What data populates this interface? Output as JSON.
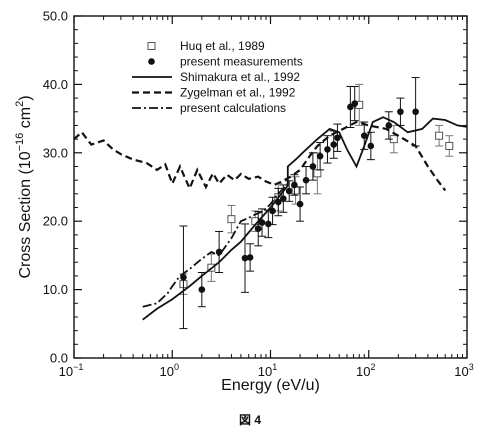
{
  "chart_data": {
    "type": "scatter",
    "xlabel": "Energy (eV/u)",
    "ylabel": "Cross Section (10^-16 cm^2)",
    "ylabel_parts": [
      "Cross Section (10",
      "−16",
      " cm",
      "2",
      ")"
    ],
    "xscale": "log",
    "xlim": [
      0.1,
      1000
    ],
    "ylim": [
      0,
      50
    ],
    "x_ticks": [
      {
        "v": 0.1,
        "base": "10",
        "exp": "−1"
      },
      {
        "v": 1,
        "base": "10",
        "exp": "0"
      },
      {
        "v": 10,
        "base": "10",
        "exp": "1"
      },
      {
        "v": 100,
        "base": "10",
        "exp": "2"
      },
      {
        "v": 1000,
        "base": "10",
        "exp": "3"
      }
    ],
    "y_ticks": [
      "0.0",
      "10.0",
      "20.0",
      "30.0",
      "40.0",
      "50.0"
    ],
    "y_tick_values": [
      0,
      10,
      20,
      30,
      40,
      50
    ],
    "grid": false,
    "legend_position": "top-center",
    "figure_caption": "図 4",
    "series": [
      {
        "name": "Huq et al., 1989",
        "kind": "scatter",
        "marker": "open-square",
        "points": [
          {
            "x": 1.3,
            "y": 10.8,
            "err": 1.5
          },
          {
            "x": 2.5,
            "y": 13.2,
            "err": 2.0
          },
          {
            "x": 4.0,
            "y": 20.3,
            "err": 2.0
          },
          {
            "x": 7.0,
            "y": 20.0,
            "err": 1.5
          },
          {
            "x": 12.0,
            "y": 23.5,
            "err": 2.0
          },
          {
            "x": 18.0,
            "y": 24.5,
            "err": 2.0
          },
          {
            "x": 30.0,
            "y": 27.0,
            "err": 3.0
          },
          {
            "x": 80.0,
            "y": 37.0,
            "err": 3.0
          },
          {
            "x": 180.0,
            "y": 32.0,
            "err": 2.0
          },
          {
            "x": 520.0,
            "y": 32.5,
            "err": 1.5
          },
          {
            "x": 660.0,
            "y": 31.0,
            "err": 1.5
          }
        ]
      },
      {
        "name": "present measurements",
        "kind": "scatter",
        "marker": "filled-circle",
        "points": [
          {
            "x": 1.3,
            "y": 11.8,
            "err": 7.5
          },
          {
            "x": 2.0,
            "y": 10.0,
            "err": 2.5
          },
          {
            "x": 3.0,
            "y": 15.5,
            "err": 3.0
          },
          {
            "x": 5.5,
            "y": 14.6,
            "err": 5.0
          },
          {
            "x": 6.2,
            "y": 14.7,
            "err": 2.0
          },
          {
            "x": 7.5,
            "y": 18.9,
            "err": 2.5
          },
          {
            "x": 8.2,
            "y": 19.8,
            "err": 2.0
          },
          {
            "x": 9.5,
            "y": 19.6,
            "err": 2.0
          },
          {
            "x": 10.5,
            "y": 21.5,
            "err": 2.0
          },
          {
            "x": 12.0,
            "y": 22.8,
            "err": 2.0
          },
          {
            "x": 13.5,
            "y": 23.3,
            "err": 2.0
          },
          {
            "x": 15.5,
            "y": 24.4,
            "err": 1.5
          },
          {
            "x": 17.5,
            "y": 25.3,
            "err": 1.5
          },
          {
            "x": 20.0,
            "y": 22.5,
            "err": 2.5
          },
          {
            "x": 23.0,
            "y": 26.0,
            "err": 2.0
          },
          {
            "x": 27.0,
            "y": 28.0,
            "err": 2.0
          },
          {
            "x": 32.0,
            "y": 29.5,
            "err": 2.0
          },
          {
            "x": 38.0,
            "y": 30.5,
            "err": 2.0
          },
          {
            "x": 44.0,
            "y": 31.2,
            "err": 2.0
          },
          {
            "x": 48.0,
            "y": 32.2,
            "err": 2.0
          },
          {
            "x": 65.0,
            "y": 36.7,
            "err": 3.0
          },
          {
            "x": 72.0,
            "y": 37.2,
            "err": 2.5
          },
          {
            "x": 90.0,
            "y": 32.5,
            "err": 2.0
          },
          {
            "x": 105.0,
            "y": 31.0,
            "err": 2.0
          },
          {
            "x": 160.0,
            "y": 34.0,
            "err": 2.0
          },
          {
            "x": 210.0,
            "y": 36.0,
            "err": 2.0
          },
          {
            "x": 300.0,
            "y": 36.0,
            "err": 5.0
          }
        ]
      },
      {
        "name": "Shimakura et al., 1992",
        "kind": "line",
        "dash": "solid",
        "points": [
          {
            "x": 0.5,
            "y": 5.6
          },
          {
            "x": 0.7,
            "y": 7.2
          },
          {
            "x": 1.0,
            "y": 8.6
          },
          {
            "x": 1.5,
            "y": 10.5
          },
          {
            "x": 2.0,
            "y": 12.0
          },
          {
            "x": 3.0,
            "y": 14.0
          },
          {
            "x": 4.0,
            "y": 15.8
          },
          {
            "x": 5.0,
            "y": 17.0
          },
          {
            "x": 7.0,
            "y": 19.5
          },
          {
            "x": 10.0,
            "y": 22.0
          },
          {
            "x": 15.0,
            "y": 25.2
          },
          {
            "x": 15.0,
            "y": 28.0
          },
          {
            "x": 18.0,
            "y": 29.0
          },
          {
            "x": 22.0,
            "y": 30.2
          },
          {
            "x": 30.0,
            "y": 32.0
          },
          {
            "x": 40.0,
            "y": 33.5
          },
          {
            "x": 50.0,
            "y": 33.0
          },
          {
            "x": 60.0,
            "y": 30.5
          },
          {
            "x": 75.0,
            "y": 28.0
          },
          {
            "x": 90.0,
            "y": 31.0
          },
          {
            "x": 110.0,
            "y": 34.5
          },
          {
            "x": 140.0,
            "y": 35.2
          },
          {
            "x": 180.0,
            "y": 34.5
          },
          {
            "x": 250.0,
            "y": 33.0
          },
          {
            "x": 350.0,
            "y": 33.5
          },
          {
            "x": 450.0,
            "y": 35.0
          },
          {
            "x": 600.0,
            "y": 34.8
          },
          {
            "x": 800.0,
            "y": 34.0
          },
          {
            "x": 1000.0,
            "y": 33.8
          }
        ]
      },
      {
        "name": "Zygelman et al., 1992",
        "kind": "line",
        "dash": "dashed",
        "points": [
          {
            "x": 0.1,
            "y": 32.0
          },
          {
            "x": 0.12,
            "y": 33.0
          },
          {
            "x": 0.15,
            "y": 31.2
          },
          {
            "x": 0.2,
            "y": 31.8
          },
          {
            "x": 0.25,
            "y": 30.5
          },
          {
            "x": 0.3,
            "y": 29.8
          },
          {
            "x": 0.4,
            "y": 29.0
          },
          {
            "x": 0.55,
            "y": 28.5
          },
          {
            "x": 0.7,
            "y": 27.5
          },
          {
            "x": 0.85,
            "y": 28.3
          },
          {
            "x": 1.0,
            "y": 25.5
          },
          {
            "x": 1.2,
            "y": 28.0
          },
          {
            "x": 1.5,
            "y": 24.8
          },
          {
            "x": 1.8,
            "y": 27.5
          },
          {
            "x": 2.2,
            "y": 25.0
          },
          {
            "x": 2.6,
            "y": 27.0
          },
          {
            "x": 3.0,
            "y": 25.5
          },
          {
            "x": 3.6,
            "y": 26.8
          },
          {
            "x": 4.3,
            "y": 26.0
          },
          {
            "x": 5.0,
            "y": 26.9
          },
          {
            "x": 6.0,
            "y": 26.2
          },
          {
            "x": 7.5,
            "y": 26.5
          },
          {
            "x": 9.0,
            "y": 25.8
          },
          {
            "x": 11.0,
            "y": 25.3
          },
          {
            "x": 13.0,
            "y": 25.8
          },
          {
            "x": 16.0,
            "y": 26.5
          },
          {
            "x": 20.0,
            "y": 27.5
          },
          {
            "x": 25.0,
            "y": 29.5
          },
          {
            "x": 30.0,
            "y": 31.0
          },
          {
            "x": 40.0,
            "y": 32.5
          },
          {
            "x": 55.0,
            "y": 33.5
          },
          {
            "x": 75.0,
            "y": 34.5
          },
          {
            "x": 100.0,
            "y": 34.0
          },
          {
            "x": 150.0,
            "y": 33.5
          },
          {
            "x": 200.0,
            "y": 32.5
          },
          {
            "x": 300.0,
            "y": 31.0
          },
          {
            "x": 400.0,
            "y": 28.0
          },
          {
            "x": 500.0,
            "y": 26.0
          },
          {
            "x": 600.0,
            "y": 24.5
          }
        ]
      },
      {
        "name": "present calculations",
        "kind": "line",
        "dash": "dash-dot",
        "points": [
          {
            "x": 0.5,
            "y": 7.5
          },
          {
            "x": 0.7,
            "y": 8.0
          },
          {
            "x": 0.9,
            "y": 9.5
          },
          {
            "x": 1.0,
            "y": 10.5
          },
          {
            "x": 1.2,
            "y": 12.0
          },
          {
            "x": 1.5,
            "y": 13.0
          },
          {
            "x": 2.0,
            "y": 14.5
          },
          {
            "x": 2.5,
            "y": 15.5
          },
          {
            "x": 3.0,
            "y": 15.0
          },
          {
            "x": 4.0,
            "y": 17.5
          },
          {
            "x": 5.0,
            "y": 20.0
          },
          {
            "x": 6.0,
            "y": 20.5
          },
          {
            "x": 7.0,
            "y": 21.0
          },
          {
            "x": 8.5,
            "y": 21.5
          },
          {
            "x": 10.0,
            "y": 22.5
          },
          {
            "x": 12.0,
            "y": 24.0
          },
          {
            "x": 15.0,
            "y": 25.5
          }
        ]
      }
    ]
  }
}
